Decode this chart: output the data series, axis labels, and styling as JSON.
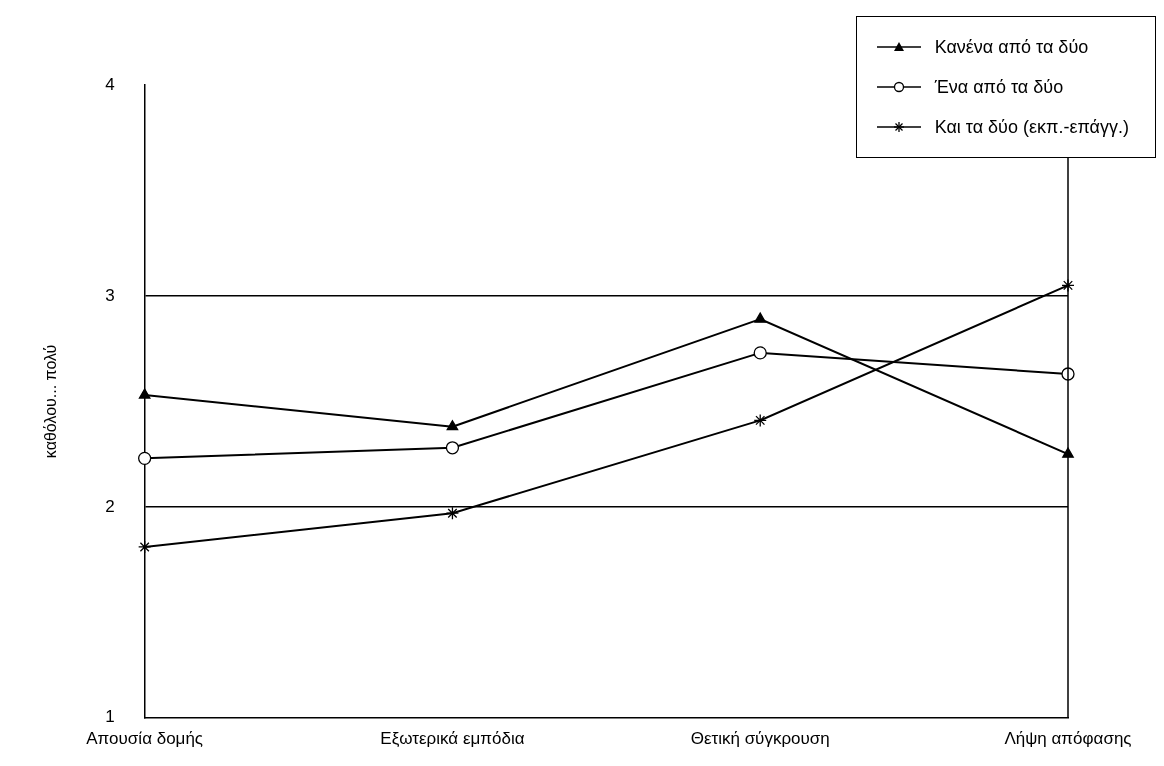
{
  "chart_data": {
    "type": "line",
    "ylabel": "καθόλου... πολύ",
    "categories": [
      "Απουσία δομής",
      "Εξωτερικά εμπόδια",
      "Θετική σύγκρουση",
      "Λήψη απόφασης"
    ],
    "ylim": [
      1,
      4
    ],
    "yticks": [
      1,
      2,
      3,
      4
    ],
    "grid": "y",
    "legend": "top right",
    "line_style": "solid",
    "series": [
      {
        "name": "Κανένα από τα δύο",
        "color": "#000000",
        "marker": "triangle",
        "values": [
          2.53,
          2.38,
          2.89,
          2.25
        ]
      },
      {
        "name": "Ένα από τα δύο",
        "color": "#000000",
        "marker": "circle",
        "values": [
          2.23,
          2.28,
          2.73,
          2.63
        ]
      },
      {
        "name": "Και τα δύο (εκπ.-επάγγ.)",
        "color": "#000000",
        "marker": "cross",
        "values": [
          1.81,
          1.97,
          2.41,
          3.05
        ]
      }
    ]
  }
}
